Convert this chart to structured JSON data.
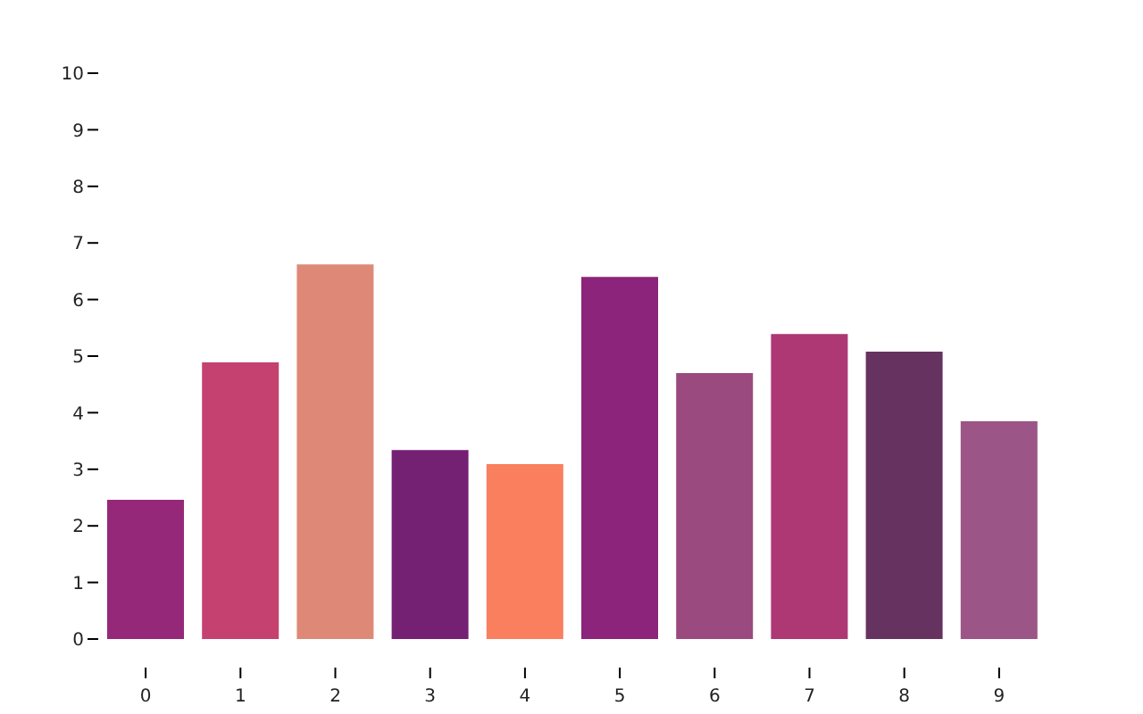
{
  "chart_data": {
    "type": "bar",
    "categories": [
      "0",
      "1",
      "2",
      "3",
      "4",
      "5",
      "6",
      "7",
      "8",
      "9"
    ],
    "values": [
      2.46,
      4.89,
      6.62,
      3.34,
      3.09,
      6.4,
      4.7,
      5.39,
      5.08,
      3.85
    ],
    "colors": [
      "#96287a",
      "#c5416f",
      "#de8978",
      "#742073",
      "#f97f5f",
      "#8b247a",
      "#9a4a7e",
      "#ad3873",
      "#66325f",
      "#9b5586"
    ],
    "ylim": [
      0,
      10
    ],
    "yticks": [
      0,
      1,
      2,
      3,
      4,
      5,
      6,
      7,
      8,
      9,
      10
    ],
    "grid": false,
    "legend": false
  }
}
